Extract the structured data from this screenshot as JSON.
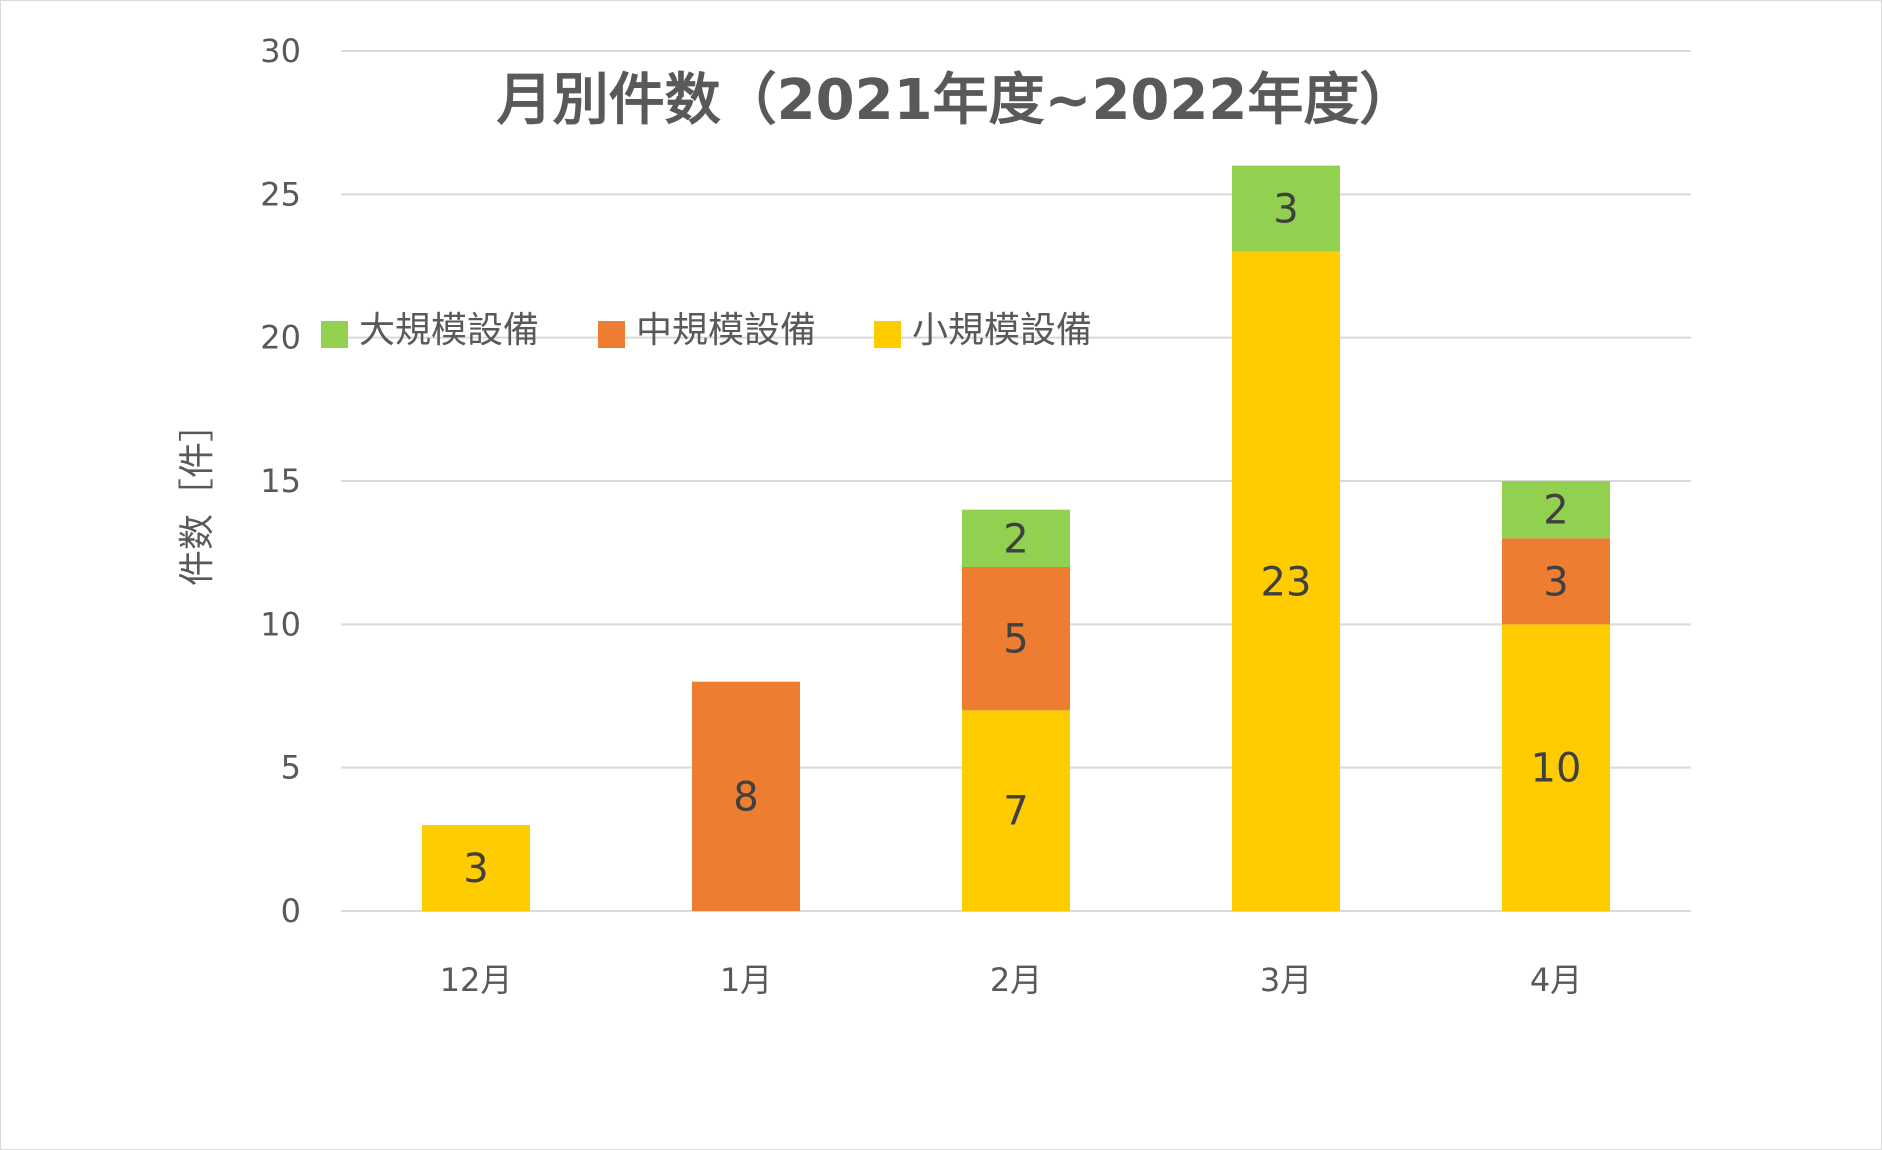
{
  "chart_data": {
    "type": "bar",
    "stacked": true,
    "title": "月別件数（2021年度~2022年度）",
    "ylabel": "件数［件］",
    "xlabel": "",
    "categories": [
      "12月",
      "1月",
      "2月",
      "3月",
      "4月"
    ],
    "ylim": [
      0,
      30
    ],
    "yticks": [
      0,
      5,
      10,
      15,
      20,
      25,
      30
    ],
    "grid": true,
    "legend_position": "top-left",
    "series": [
      {
        "name": "小規模設備",
        "color": "#FFCC00",
        "values": [
          3,
          0,
          7,
          23,
          10
        ]
      },
      {
        "name": "中規模設備",
        "color": "#ED7D31",
        "values": [
          0,
          8,
          5,
          0,
          3
        ]
      },
      {
        "name": "大規模設備",
        "color": "#92D050",
        "values": [
          0,
          0,
          2,
          3,
          2
        ]
      }
    ],
    "legend_order": [
      "大規模設備",
      "中規模設備",
      "小規模設備"
    ]
  }
}
